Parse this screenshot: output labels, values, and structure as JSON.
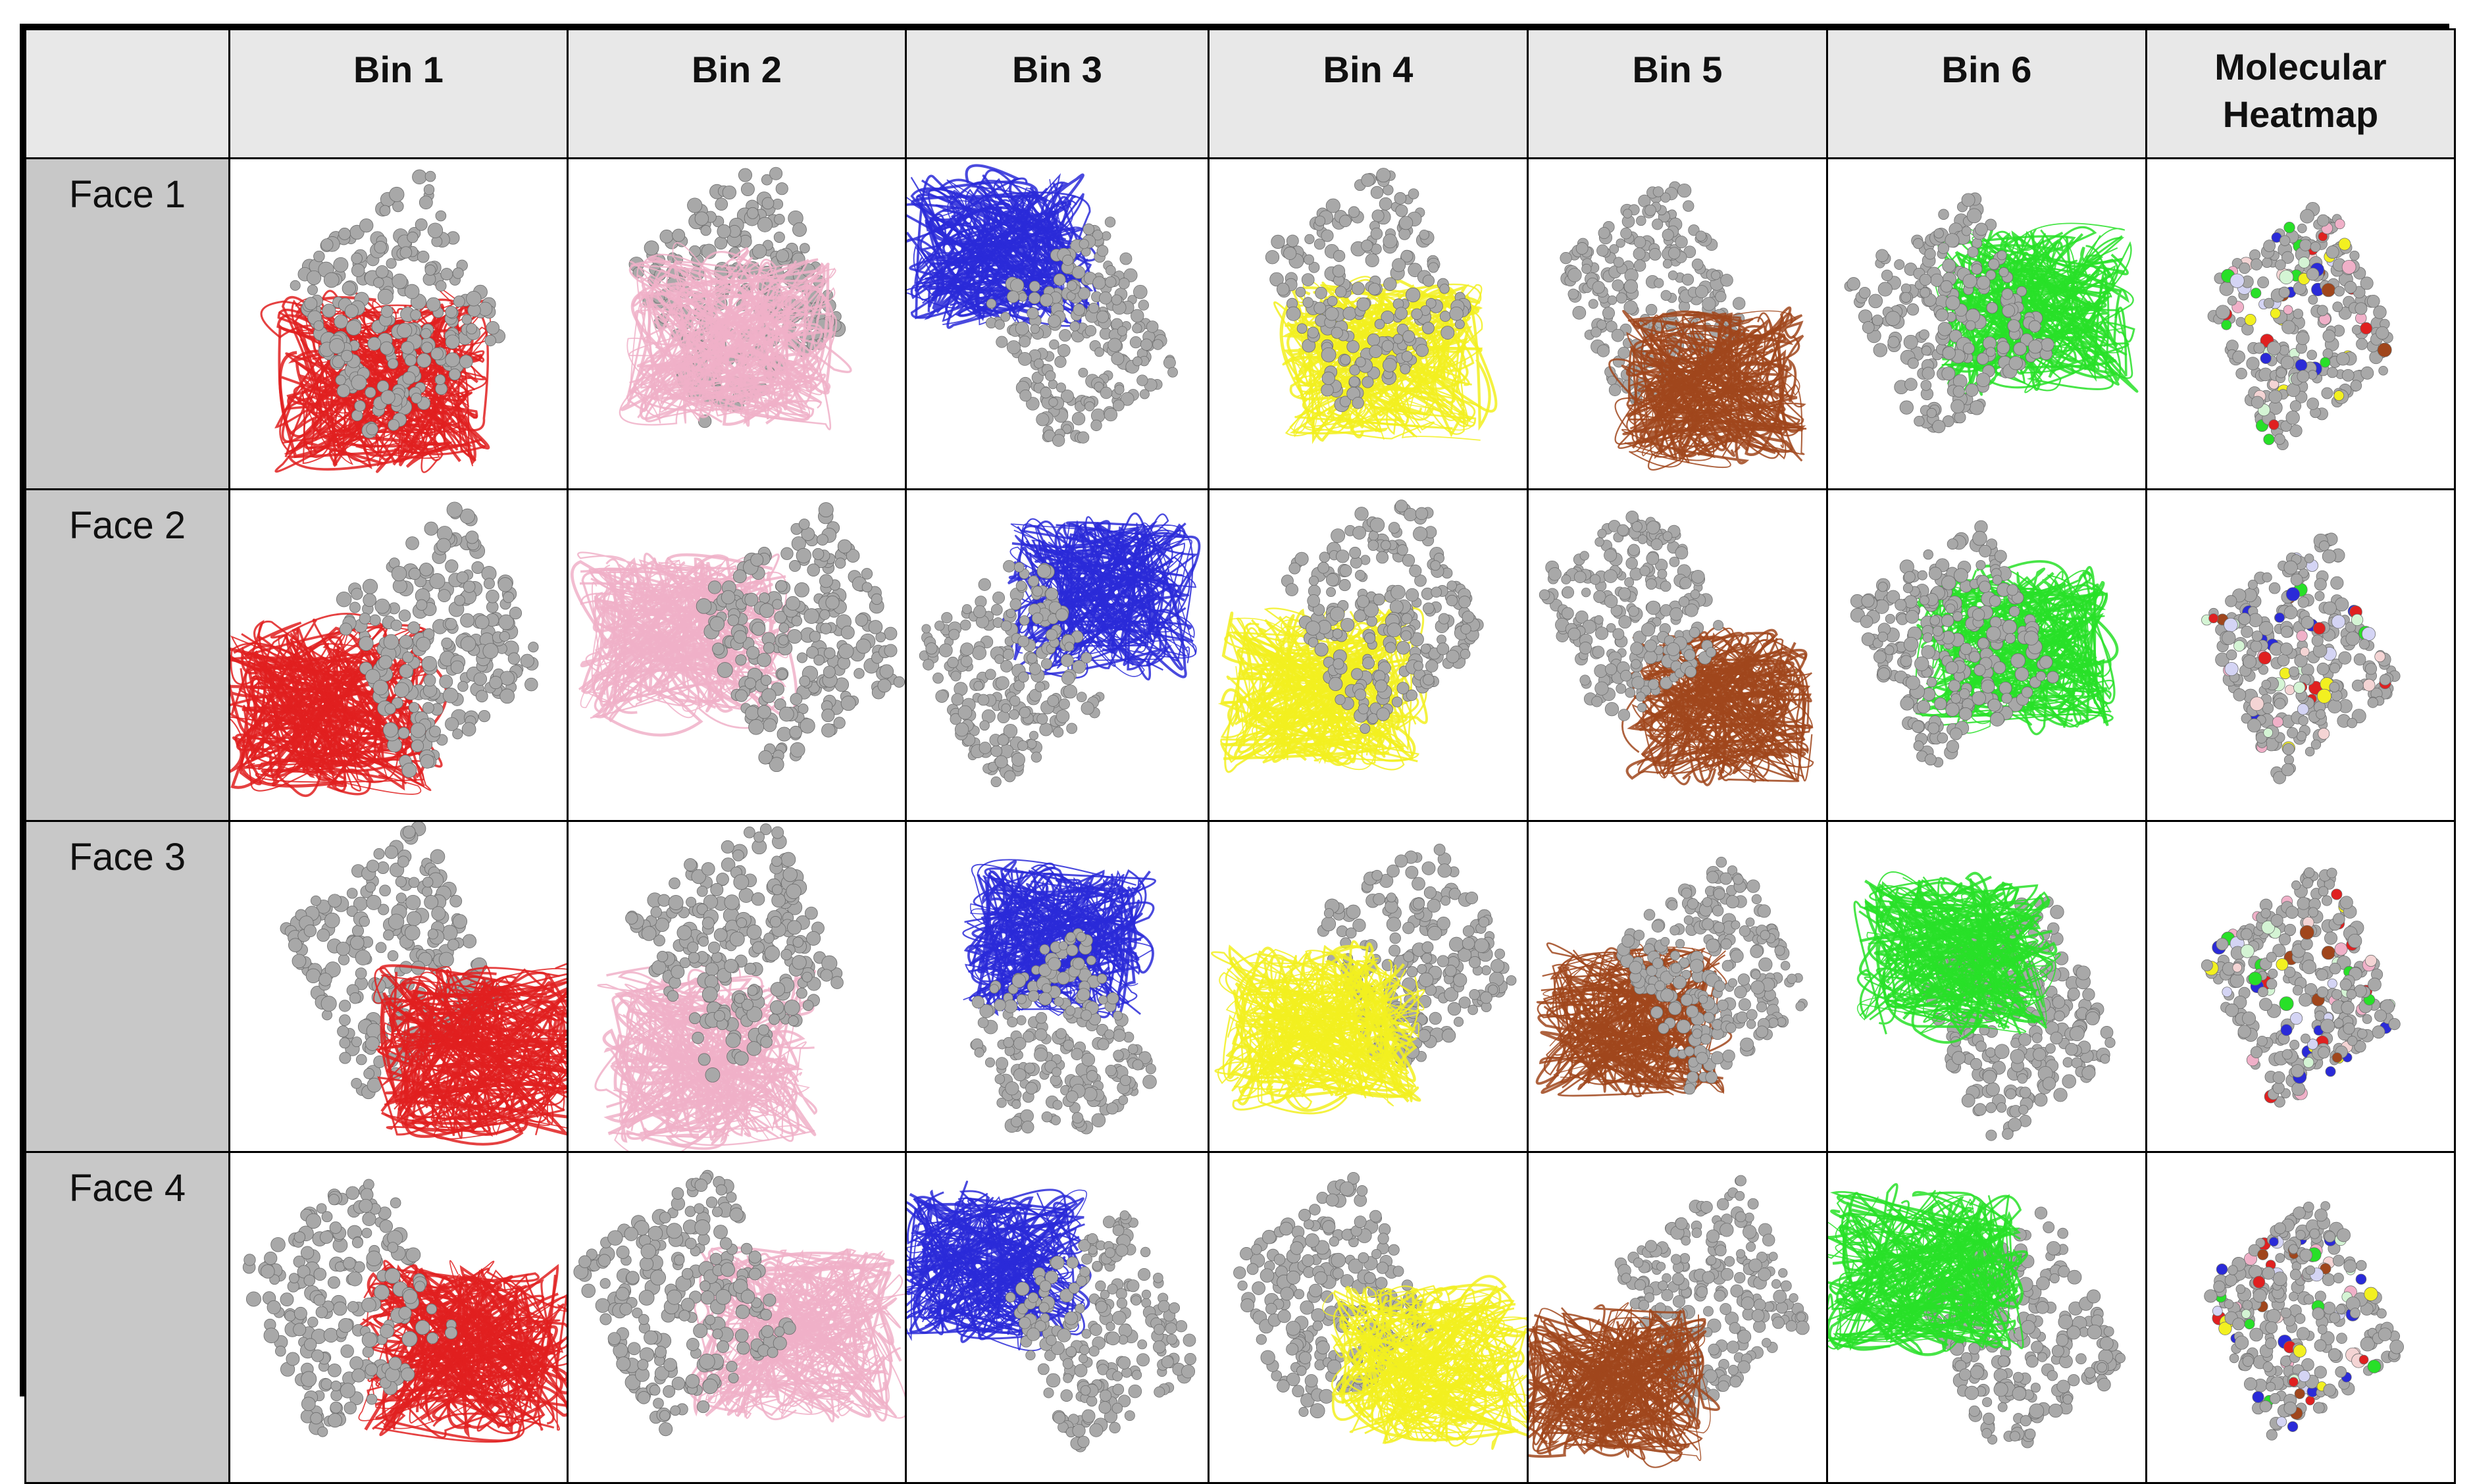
{
  "table": {
    "corner": "",
    "columns": [
      "Bin 1",
      "Bin 2",
      "Bin 3",
      "Bin 4",
      "Bin 5",
      "Bin 6",
      "Molecular Heatmap"
    ],
    "rows": [
      "Face 1",
      "Face 2",
      "Face 3",
      "Face 4"
    ]
  },
  "colors": {
    "bin1": "#e02020",
    "bin2": "#f0b0c8",
    "bin3": "#2a2ad8",
    "bin4": "#f2f020",
    "bin5": "#a0461c",
    "bin6": "#28e028",
    "protein": "#a8a8a8",
    "header_bg": "#e8e8e8",
    "rowhead_bg": "#c8c8c8"
  },
  "cell_content": {
    "bin_cells": "grey space-filling protein with colored ribbon ensemble",
    "heatmap_cells": "grey protein surface with colored hotspot patches"
  }
}
